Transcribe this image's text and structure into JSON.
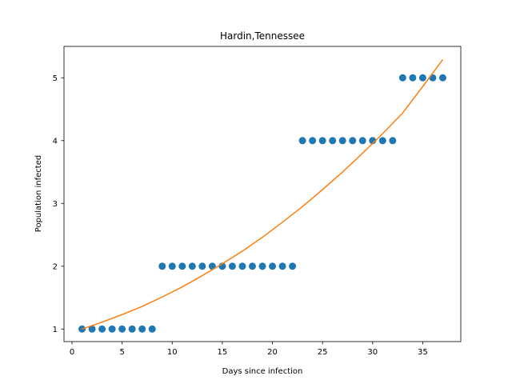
{
  "chart_data": {
    "type": "scatter",
    "title": "Hardin,Tennessee",
    "xlabel": "Days since infection",
    "ylabel": "Population infected",
    "xlim": [
      -0.8,
      38.8
    ],
    "ylim": [
      0.8,
      5.5
    ],
    "xticks": [
      0,
      5,
      10,
      15,
      20,
      25,
      30,
      35
    ],
    "yticks": [
      1,
      2,
      3,
      4,
      5
    ],
    "grid": false,
    "series": [
      {
        "kind": "scatter",
        "color": "#1f77b4",
        "x": [
          1,
          2,
          3,
          4,
          5,
          6,
          7,
          8,
          9,
          10,
          11,
          12,
          13,
          14,
          15,
          16,
          17,
          18,
          19,
          20,
          21,
          22,
          23,
          24,
          25,
          26,
          27,
          28,
          29,
          30,
          31,
          32,
          33,
          34,
          35,
          36,
          37
        ],
        "y": [
          1,
          1,
          1,
          1,
          1,
          1,
          1,
          1,
          2,
          2,
          2,
          2,
          2,
          2,
          2,
          2,
          2,
          2,
          2,
          2,
          2,
          2,
          4,
          4,
          4,
          4,
          4,
          4,
          4,
          4,
          4,
          4,
          5,
          5,
          5,
          5,
          5
        ]
      },
      {
        "kind": "line",
        "color": "#ff7f0e",
        "x": [
          1,
          3,
          5,
          7,
          9,
          11,
          13,
          15,
          17,
          19,
          21,
          23,
          25,
          27,
          29,
          31,
          33,
          35,
          37
        ],
        "y": [
          1.0,
          1.11,
          1.23,
          1.36,
          1.51,
          1.67,
          1.85,
          2.04,
          2.24,
          2.46,
          2.7,
          2.95,
          3.22,
          3.5,
          3.8,
          4.11,
          4.44,
          4.86,
          5.29
        ]
      }
    ]
  }
}
